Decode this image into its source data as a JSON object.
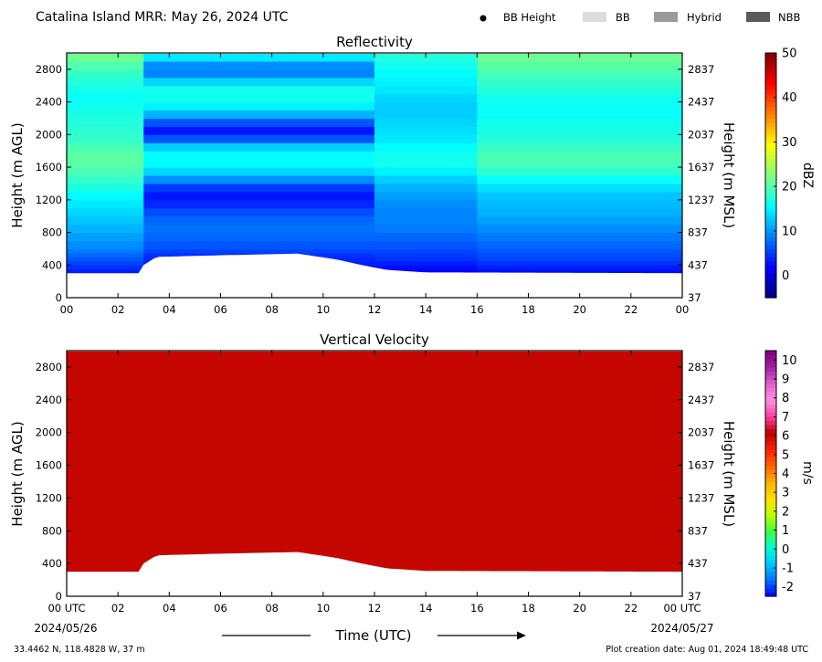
{
  "header": {
    "title": "Catalina Island MRR:  May 26, 2024 UTC",
    "legend": [
      {
        "label": "BB Height",
        "kind": "dot",
        "color": "#000000"
      },
      {
        "label": "BB",
        "kind": "box",
        "color": "#dcdcdc"
      },
      {
        "label": "Hybrid",
        "kind": "box",
        "color": "#9a9a9a"
      },
      {
        "label": "NBB",
        "kind": "box",
        "color": "#5a5a5a"
      }
    ]
  },
  "footer": {
    "coords": "33.4462 N, 118.4828 W, 37 m",
    "creation": "Plot creation date: Aug 01, 2024 18:49:48 UTC",
    "xlabel": "Time (UTC)",
    "start_date": "2024/05/26",
    "end_date": "2024/05/27"
  },
  "chart_data": [
    {
      "type": "heatmap",
      "title": "Reflectivity",
      "ylabel": "Height (m AGL)",
      "ylabel_right": "Height (m MSL)",
      "x_ticks": [
        "00",
        "02",
        "04",
        "06",
        "08",
        "10",
        "12",
        "14",
        "16",
        "18",
        "20",
        "22",
        "00"
      ],
      "xlim_hours": [
        0,
        24
      ],
      "ylim": [
        0,
        3000
      ],
      "y_ticks": [
        0,
        400,
        800,
        1200,
        1600,
        2000,
        2400,
        2800
      ],
      "y_ticks_right": [
        37,
        437,
        837,
        1237,
        1637,
        2037,
        2437,
        2837
      ],
      "data_top_m": 2990,
      "colorbar": {
        "label": "dBZ",
        "range": [
          -5,
          50
        ],
        "ticks": [
          0,
          10,
          20,
          30,
          40,
          50
        ],
        "colors": [
          "#00007f",
          "#0000ff",
          "#007fff",
          "#00ffff",
          "#7fff7f",
          "#ffff00",
          "#ff7f00",
          "#ff0000",
          "#7f0000"
        ]
      },
      "height_levels_m": [
        300,
        350,
        400,
        450,
        500,
        550,
        600,
        700,
        800,
        900,
        1000,
        1100,
        1200,
        1300,
        1400,
        1500,
        1600,
        1700,
        1800,
        1900,
        2000,
        2100,
        2200,
        2300,
        2400,
        2500,
        2600,
        2700,
        2800,
        2900,
        2990
      ],
      "time_periods": [
        {
          "hours": [
            0,
            3
          ],
          "dbz_profile": [
            3,
            4,
            5,
            6,
            7,
            8,
            9,
            10,
            11,
            12,
            13,
            14,
            15,
            16,
            18,
            19,
            20,
            21,
            20,
            19,
            18,
            18,
            17,
            17,
            16,
            16,
            17,
            18,
            19,
            21,
            22
          ]
        },
        {
          "hours": [
            3,
            12
          ],
          "dbz_profile": [
            1,
            2,
            3,
            4,
            4,
            5,
            6,
            7,
            8,
            8,
            7,
            5,
            3,
            3,
            7,
            12,
            15,
            16,
            15,
            11,
            2,
            4,
            9,
            14,
            16,
            17,
            16,
            11,
            7,
            12,
            17
          ]
        },
        {
          "hours": [
            12,
            16
          ],
          "dbz_profile": [
            1,
            2,
            3,
            4,
            5,
            5,
            6,
            7,
            8,
            9,
            9,
            9,
            10,
            11,
            12,
            14,
            16,
            17,
            16,
            15,
            14,
            14,
            13,
            13,
            13,
            14,
            15,
            15,
            16,
            17,
            18
          ]
        },
        {
          "hours": [
            16,
            24
          ],
          "dbz_profile": [
            2,
            3,
            4,
            5,
            6,
            6,
            7,
            8,
            9,
            10,
            11,
            12,
            12,
            13,
            15,
            17,
            19,
            20,
            19,
            18,
            17,
            17,
            16,
            16,
            16,
            17,
            18,
            19,
            20,
            21,
            22
          ]
        }
      ],
      "lower_echo_edge_m": [
        {
          "hour": 0,
          "height": 300
        },
        {
          "hour": 2.95,
          "height": 300
        },
        {
          "hour": 3.0,
          "height": 400
        },
        {
          "hour": 3.5,
          "height": 500
        },
        {
          "hour": 6.0,
          "height": 520
        },
        {
          "hour": 9.0,
          "height": 540
        },
        {
          "hour": 10.5,
          "height": 470
        },
        {
          "hour": 11.5,
          "height": 400
        },
        {
          "hour": 12.5,
          "height": 340
        },
        {
          "hour": 14.0,
          "height": 310
        },
        {
          "hour": 24,
          "height": 300
        }
      ]
    },
    {
      "type": "heatmap",
      "title": "Vertical Velocity",
      "ylabel": "Height (m AGL)",
      "ylabel_right": "Height (m MSL)",
      "x_ticks": [
        "00 UTC",
        "02",
        "04",
        "06",
        "08",
        "10",
        "12",
        "14",
        "16",
        "18",
        "20",
        "22",
        "00 UTC"
      ],
      "xlim_hours": [
        0,
        24
      ],
      "ylim": [
        0,
        3000
      ],
      "y_ticks": [
        0,
        400,
        800,
        1200,
        1600,
        2000,
        2400,
        2800
      ],
      "y_ticks_right": [
        37,
        437,
        837,
        1237,
        1637,
        2037,
        2437,
        2837
      ],
      "data_top_m": 2990,
      "value_ms": 6.0,
      "colorbar": {
        "label": "m/s",
        "range": [
          -2.5,
          10.5
        ],
        "ticks": [
          -2,
          -1,
          0,
          1,
          2,
          3,
          4,
          5,
          6,
          7,
          8,
          9,
          10
        ],
        "colors": [
          "#0000ff",
          "#0070ff",
          "#00c8ff",
          "#00ffd0",
          "#40ff40",
          "#c0ff00",
          "#ffe000",
          "#ffb000",
          "#ff6000",
          "#ff2000",
          "#b80000",
          "#ff40a0",
          "#ff90e0",
          "#e060d0",
          "#a020a0",
          "#800080"
        ]
      }
    }
  ]
}
